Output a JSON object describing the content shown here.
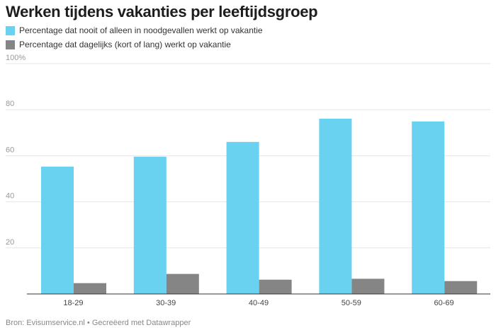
{
  "title": "Werken tijdens vakanties per leeftijdsgroep",
  "footer": "Bron: Evisumservice.nl • Gecreëerd met Datawrapper",
  "colors": {
    "series1": "#69d2f0",
    "series2": "#858585",
    "grid": "#e6e6e6",
    "axis": "#333333",
    "tick": "#999999"
  },
  "chart_data": {
    "type": "bar",
    "title": "Werken tijdens vakanties per leeftijdsgroep",
    "categories": [
      "18-29",
      "30-39",
      "40-49",
      "50-59",
      "60-69"
    ],
    "series": [
      {
        "name": "Percentage dat nooit of alleen in noodgevallen werkt op vakantie",
        "values": [
          55.3,
          59.6,
          66.0,
          76.1,
          74.9
        ]
      },
      {
        "name": "Percentage dat dagelijks (kort of lang) werkt op vakantie",
        "values": [
          4.7,
          8.7,
          6.2,
          6.6,
          5.6
        ]
      }
    ],
    "yticks": [
      "",
      "20",
      "40",
      "60",
      "80",
      "100%"
    ],
    "ylim": [
      0,
      100
    ],
    "grid": true,
    "legend": "top-left"
  }
}
